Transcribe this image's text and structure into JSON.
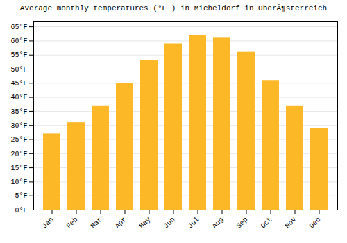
{
  "chart_data": {
    "type": "bar",
    "title": "Average monthly temperatures (°F ) in Micheldorf in OberÃ¶sterreich",
    "categories": [
      "Jan",
      "Feb",
      "Mar",
      "Apr",
      "May",
      "Jun",
      "Jul",
      "Aug",
      "Sep",
      "Oct",
      "Nov",
      "Dec"
    ],
    "values": [
      27,
      31,
      37,
      45,
      53,
      59,
      62,
      61,
      56,
      46,
      37,
      29
    ],
    "color": "#FDB827",
    "ylim": [
      0,
      67
    ],
    "yticks": [
      {
        "value": 0,
        "label": "0°F"
      },
      {
        "value": 5,
        "label": "5°F"
      },
      {
        "value": 10,
        "label": "10°F"
      },
      {
        "value": 15,
        "label": "15°F"
      },
      {
        "value": 20,
        "label": "20°F"
      },
      {
        "value": 25,
        "label": "25°F"
      },
      {
        "value": 30,
        "label": "30°F"
      },
      {
        "value": 35,
        "label": "35°F"
      },
      {
        "value": 40,
        "label": "40°F"
      },
      {
        "value": 45,
        "label": "45°F"
      },
      {
        "value": 50,
        "label": "50°F"
      },
      {
        "value": 55,
        "label": "55°F"
      },
      {
        "value": 60,
        "label": "60°F"
      },
      {
        "value": 65,
        "label": "65°F"
      }
    ],
    "grid": true
  }
}
